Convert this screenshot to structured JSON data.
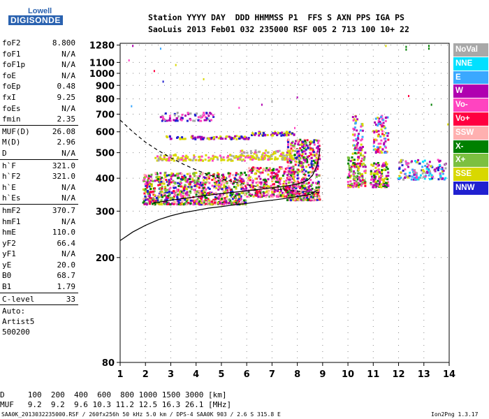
{
  "logo": {
    "line1": "Lowell",
    "line2": "DIGISONDE"
  },
  "header": {
    "line1": "Station YYYY DAY  DDD HHMMSS P1  FFS S AXN PPS IGA PS",
    "line2": "SaoLuis 2013 Feb01 032 235000 RSF 005 2 713 100 10+ 22"
  },
  "params": {
    "group1": [
      {
        "k": "foF2",
        "v": "8.800"
      },
      {
        "k": "foF1",
        "v": "N/A"
      },
      {
        "k": "foF1p",
        "v": "N/A"
      },
      {
        "k": "foE",
        "v": "N/A"
      },
      {
        "k": "foEp",
        "v": "0.48"
      },
      {
        "k": "fxI",
        "v": "9.25"
      },
      {
        "k": "foEs",
        "v": "N/A"
      },
      {
        "k": "fmin",
        "v": "2.35"
      }
    ],
    "group2": [
      {
        "k": "MUF(D)",
        "v": "26.08"
      },
      {
        "k": "M(D)",
        "v": "2.96"
      },
      {
        "k": "D",
        "v": "N/A"
      }
    ],
    "group3": [
      {
        "k": "h`F",
        "v": "321.0"
      },
      {
        "k": "h`F2",
        "v": "321.0"
      },
      {
        "k": "h`E",
        "v": "N/A"
      },
      {
        "k": "h`Es",
        "v": "N/A"
      }
    ],
    "group4": [
      {
        "k": "hmF2",
        "v": "370.7"
      },
      {
        "k": "hmF1",
        "v": "N/A"
      },
      {
        "k": "hmE",
        "v": "110.0"
      },
      {
        "k": "yF2",
        "v": "66.4"
      },
      {
        "k": "yF1",
        "v": "N/A"
      },
      {
        "k": "yE",
        "v": "20.0"
      },
      {
        "k": "B0",
        "v": "68.7"
      },
      {
        "k": "B1",
        "v": "1.79"
      }
    ],
    "group5": [
      {
        "k": "C-level",
        "v": "33"
      }
    ],
    "auto": [
      "Auto:",
      "Artist5",
      "500200"
    ]
  },
  "legend": [
    {
      "label": "NoVal",
      "color": "#a8a8a8"
    },
    {
      "label": "NNE",
      "color": "#00e0ff"
    },
    {
      "label": "E",
      "color": "#3aa8ff"
    },
    {
      "label": "W",
      "color": "#b000b0"
    },
    {
      "label": "Vo-",
      "color": "#ff44c0"
    },
    {
      "label": "Vo+",
      "color": "#ff0040"
    },
    {
      "label": "SSW",
      "color": "#ffb0b0"
    },
    {
      "label": "X-",
      "color": "#008000"
    },
    {
      "label": "X+",
      "color": "#7cc040"
    },
    {
      "label": "SSE",
      "color": "#d8d800"
    },
    {
      "label": "NNW",
      "color": "#2020d0"
    }
  ],
  "bottom": {
    "row1": "D     100  200  400  600  800 1000 1500 3000 [km]",
    "row2": "MUF   9.2  9.2  9.6 10.3 11.2 12.5 16.3 26.1 [MHz]"
  },
  "footer": {
    "left": "SAA0K_2013032235000.RSF / 260fx256h 50 kHz 5.0 km / DPS-4 SAA0K 903 / 2.6 S 315.8 E",
    "right": "Ion2Png 1.3.17"
  },
  "chart_data": {
    "type": "scatter",
    "xlim": [
      1,
      14
    ],
    "ylim": [
      80,
      1300
    ],
    "yscale": "log",
    "xticks": [
      1,
      2,
      3,
      4,
      5,
      6,
      7,
      8,
      9,
      10,
      11,
      12,
      13,
      14
    ],
    "yticks": [
      80,
      200,
      300,
      400,
      500,
      600,
      700,
      800,
      900,
      1000,
      1100,
      1280
    ],
    "grid": true,
    "clusters": [
      {
        "fmin": 1.9,
        "fmax": 6.0,
        "hmin": 318,
        "hmax": 420,
        "density": 900,
        "colors": [
          "#ff0040",
          "#ff44c0",
          "#b000b0",
          "#d8d800",
          "#008000",
          "#2020d0",
          "#ffb0b0",
          "#7cc040"
        ]
      },
      {
        "fmin": 6.0,
        "fmax": 7.9,
        "hmin": 340,
        "hmax": 440,
        "density": 350,
        "colors": [
          "#ff0040",
          "#ff44c0",
          "#b000b0",
          "#d8d800",
          "#008000",
          "#ffb0b0"
        ]
      },
      {
        "fmin": 7.6,
        "fmax": 8.9,
        "hmin": 330,
        "hmax": 560,
        "density": 550,
        "colors": [
          "#ff0040",
          "#ff44c0",
          "#b000b0",
          "#d8d800",
          "#008000",
          "#7cc040",
          "#2020d0",
          "#ffb0b0"
        ]
      },
      {
        "fmin": 2.4,
        "fmax": 6.0,
        "hmin": 466,
        "hmax": 492,
        "density": 120,
        "colors": [
          "#d8d800",
          "#d8d800",
          "#ff44c0",
          "#a8a8a8"
        ]
      },
      {
        "fmin": 5.7,
        "fmax": 7.9,
        "hmin": 470,
        "hmax": 510,
        "density": 130,
        "colors": [
          "#d8d800",
          "#d8d800",
          "#ff44c0",
          "#a8a8a8"
        ]
      },
      {
        "fmin": 2.8,
        "fmax": 6.1,
        "hmin": 562,
        "hmax": 578,
        "density": 80,
        "colors": [
          "#2020d0",
          "#b000b0",
          "#d8d800"
        ]
      },
      {
        "fmin": 6.2,
        "fmax": 7.9,
        "hmin": 580,
        "hmax": 600,
        "density": 60,
        "colors": [
          "#d8d800",
          "#2020d0",
          "#b000b0"
        ]
      },
      {
        "fmin": 2.6,
        "fmax": 4.7,
        "hmin": 660,
        "hmax": 710,
        "density": 70,
        "colors": [
          "#b000b0",
          "#ff44c0",
          "#a8a8a8",
          "#2020d0"
        ]
      },
      {
        "fmin": 10.0,
        "fmax": 10.7,
        "hmin": 370,
        "hmax": 500,
        "density": 140,
        "colors": [
          "#d8d800",
          "#ff0040",
          "#b000b0",
          "#008000",
          "#ff44c0",
          "#7cc040"
        ]
      },
      {
        "fmin": 10.2,
        "fmax": 10.6,
        "hmin": 510,
        "hmax": 690,
        "density": 60,
        "colors": [
          "#ff44c0",
          "#b000b0",
          "#3aa8ff",
          "#d8d800"
        ]
      },
      {
        "fmin": 10.9,
        "fmax": 11.6,
        "hmin": 370,
        "hmax": 460,
        "density": 120,
        "colors": [
          "#d8d800",
          "#008000",
          "#ff44c0",
          "#b000b0"
        ]
      },
      {
        "fmin": 11.0,
        "fmax": 11.6,
        "hmin": 500,
        "hmax": 690,
        "density": 90,
        "colors": [
          "#b000b0",
          "#ff44c0",
          "#ff0040",
          "#3aa8ff",
          "#d8d800"
        ]
      },
      {
        "fmin": 12.0,
        "fmax": 13.9,
        "hmin": 395,
        "hmax": 470,
        "density": 150,
        "colors": [
          "#00e0ff",
          "#3aa8ff",
          "#d8d800",
          "#b000b0",
          "#2020d0",
          "#ff44c0",
          "#a8a8a8"
        ]
      }
    ],
    "scattered_points": [
      {
        "f": 1.5,
        "h": 1270,
        "c": "#b000b0"
      },
      {
        "f": 1.35,
        "h": 1120,
        "c": "#ff44c0"
      },
      {
        "f": 1.45,
        "h": 750,
        "c": "#3aa8ff"
      },
      {
        "f": 2.35,
        "h": 1020,
        "c": "#ff0040"
      },
      {
        "f": 2.6,
        "h": 1240,
        "c": "#3aa8ff"
      },
      {
        "f": 2.7,
        "h": 930,
        "c": "#2020d0"
      },
      {
        "f": 3.2,
        "h": 1075,
        "c": "#d8d800"
      },
      {
        "f": 4.3,
        "h": 950,
        "c": "#d8d800"
      },
      {
        "f": 5.7,
        "h": 740,
        "c": "#ff44c0"
      },
      {
        "f": 6.6,
        "h": 760,
        "c": "#b000b0"
      },
      {
        "f": 7.0,
        "h": 780,
        "c": "#a8a8a8"
      },
      {
        "f": 8.0,
        "h": 810,
        "c": "#b000b0"
      },
      {
        "f": 7.9,
        "h": 620,
        "c": "#ff44c0"
      },
      {
        "f": 12.4,
        "h": 820,
        "c": "#ff0040"
      },
      {
        "f": 13.3,
        "h": 760,
        "c": "#008000"
      },
      {
        "f": 12.3,
        "h": 1260,
        "c": "#008000"
      },
      {
        "f": 12.3,
        "h": 1230,
        "c": "#008000"
      },
      {
        "f": 13.2,
        "h": 1270,
        "c": "#008000"
      },
      {
        "f": 13.2,
        "h": 1240,
        "c": "#008000"
      },
      {
        "f": 13.95,
        "h": 640,
        "c": "#d8d800"
      },
      {
        "f": 11.5,
        "h": 1270,
        "c": "#d8d800"
      }
    ],
    "curves": [
      {
        "style": "dashed",
        "color": "#000000",
        "points": [
          [
            1,
            665
          ],
          [
            1.5,
            600
          ],
          [
            2,
            548
          ],
          [
            2.5,
            510
          ],
          [
            3,
            478
          ],
          [
            3.5,
            452
          ],
          [
            4,
            430
          ],
          [
            4.5,
            412
          ],
          [
            5,
            398
          ],
          [
            5.5,
            387
          ],
          [
            6,
            378
          ],
          [
            6.5,
            371
          ],
          [
            7,
            365
          ],
          [
            7.5,
            361
          ],
          [
            8,
            357
          ],
          [
            8.5,
            354
          ],
          [
            9,
            352
          ]
        ]
      },
      {
        "style": "solid",
        "color": "#000000",
        "points": [
          [
            1,
            232
          ],
          [
            1.5,
            250
          ],
          [
            2,
            265
          ],
          [
            2.5,
            278
          ],
          [
            3,
            288
          ],
          [
            3.5,
            296
          ],
          [
            4,
            302
          ],
          [
            4.5,
            308
          ],
          [
            5,
            312
          ],
          [
            5.5,
            317
          ],
          [
            6,
            321
          ],
          [
            6.5,
            326
          ],
          [
            7,
            330
          ],
          [
            7.5,
            335
          ],
          [
            8,
            341
          ],
          [
            8.5,
            347
          ],
          [
            8.8,
            360
          ]
        ]
      },
      {
        "style": "solid",
        "color": "#000000",
        "points": [
          [
            2.3,
            322
          ],
          [
            3,
            330
          ],
          [
            4,
            340
          ],
          [
            5,
            350
          ],
          [
            6,
            358
          ],
          [
            7,
            368
          ],
          [
            7.5,
            373
          ],
          [
            8,
            380
          ],
          [
            8.4,
            392
          ],
          [
            8.6,
            410
          ],
          [
            8.75,
            440
          ],
          [
            8.85,
            480
          ],
          [
            8.9,
            520
          ]
        ]
      }
    ]
  }
}
